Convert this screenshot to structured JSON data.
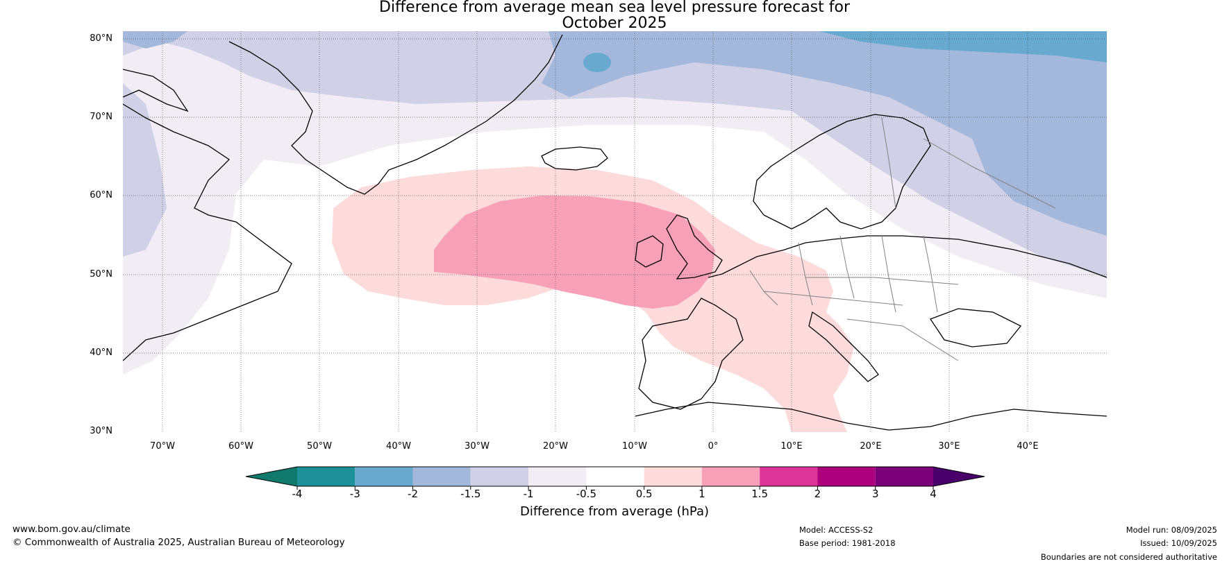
{
  "title": {
    "line1": "Difference from average mean sea level pressure forecast for",
    "line2": "October 2025"
  },
  "latitude_labels": [
    "80°N",
    "70°N",
    "60°N",
    "50°N",
    "40°N",
    "30°N"
  ],
  "longitude_labels": [
    "70°W",
    "60°W",
    "50°W",
    "40°W",
    "30°W",
    "20°W",
    "10°W",
    "0°",
    "10°E",
    "20°E",
    "30°E",
    "40°E"
  ],
  "colorbar": {
    "label": "Difference from average (hPa)",
    "ticks": [
      "-4",
      "-3",
      "-2",
      "-1.5",
      "-1",
      "-0.5",
      "0.5",
      "1",
      "1.5",
      "2",
      "3",
      "4"
    ],
    "colors": [
      "#0f7a6c",
      "#1e9098",
      "#67a9cf",
      "#a4b8db",
      "#d0d1e6",
      "#f2ecf4",
      "#ffffff",
      "#fddbdb",
      "#f7a0b8",
      "#dd3497",
      "#ae017e",
      "#7a0177",
      "#49006a"
    ]
  },
  "footer": {
    "website": "www.bom.gov.au/climate",
    "copyright": "© Commonwealth of Australia 2025, Australian Bureau of Meteorology",
    "model": "Model: ACCESS-S2",
    "base_period": "Base period: 1981-2018",
    "model_run": "Model run: 08/09/2025",
    "issued": "Issued: 10/09/2025",
    "disclaimer": "Boundaries are not considered authoritative"
  }
}
